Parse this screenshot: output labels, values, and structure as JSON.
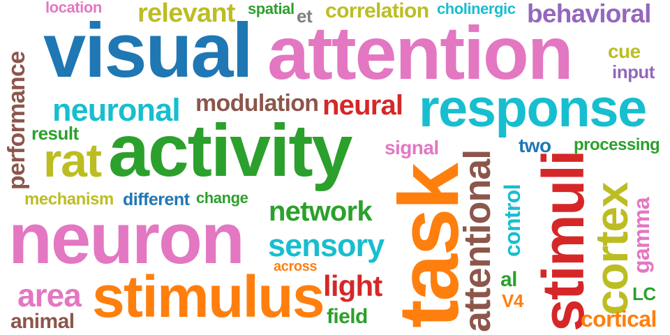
{
  "colors": {
    "blue": "#1f77b4",
    "pink": "#e377c2",
    "olive": "#bcbd22",
    "cyan": "#17becf",
    "green": "#2ca02c",
    "brown": "#8c564b",
    "red": "#d62728",
    "orange": "#ff7f0e",
    "purple": "#9467bd",
    "gray": "#7f7f7f"
  },
  "words": [
    {
      "text": "visual",
      "color": "blue"
    },
    {
      "text": "attention",
      "color": "pink"
    },
    {
      "text": "response",
      "color": "cyan"
    },
    {
      "text": "activity",
      "color": "green"
    },
    {
      "text": "neuron",
      "color": "pink"
    },
    {
      "text": "task",
      "color": "orange"
    },
    {
      "text": "stimulus",
      "color": "orange"
    },
    {
      "text": "stimuli",
      "color": "red"
    },
    {
      "text": "cortex",
      "color": "olive"
    },
    {
      "text": "rat",
      "color": "olive"
    },
    {
      "text": "attentional",
      "color": "brown"
    },
    {
      "text": "relevant",
      "color": "olive"
    },
    {
      "text": "correlation",
      "color": "olive"
    },
    {
      "text": "behavioral",
      "color": "purple"
    },
    {
      "text": "neuronal",
      "color": "cyan"
    },
    {
      "text": "modulation",
      "color": "brown"
    },
    {
      "text": "neural",
      "color": "red"
    },
    {
      "text": "network",
      "color": "green"
    },
    {
      "text": "sensory",
      "color": "cyan"
    },
    {
      "text": "area",
      "color": "pink"
    },
    {
      "text": "light",
      "color": "red"
    },
    {
      "text": "performance",
      "color": "brown"
    },
    {
      "text": "location",
      "color": "pink"
    },
    {
      "text": "spatial",
      "color": "green"
    },
    {
      "text": "et",
      "color": "gray"
    },
    {
      "text": "cholinergic",
      "color": "cyan"
    },
    {
      "text": "cue",
      "color": "olive"
    },
    {
      "text": "input",
      "color": "purple"
    },
    {
      "text": "result",
      "color": "green"
    },
    {
      "text": "signal",
      "color": "pink"
    },
    {
      "text": "two",
      "color": "blue"
    },
    {
      "text": "processing",
      "color": "green"
    },
    {
      "text": "mechanism",
      "color": "olive"
    },
    {
      "text": "different",
      "color": "blue"
    },
    {
      "text": "change",
      "color": "green"
    },
    {
      "text": "across",
      "color": "orange"
    },
    {
      "text": "animal",
      "color": "brown"
    },
    {
      "text": "field",
      "color": "green"
    },
    {
      "text": "control",
      "color": "cyan"
    },
    {
      "text": "al",
      "color": "green"
    },
    {
      "text": "V4",
      "color": "orange"
    },
    {
      "text": "gamma",
      "color": "pink"
    },
    {
      "text": "LC",
      "color": "green"
    },
    {
      "text": "cortical",
      "color": "orange"
    }
  ]
}
